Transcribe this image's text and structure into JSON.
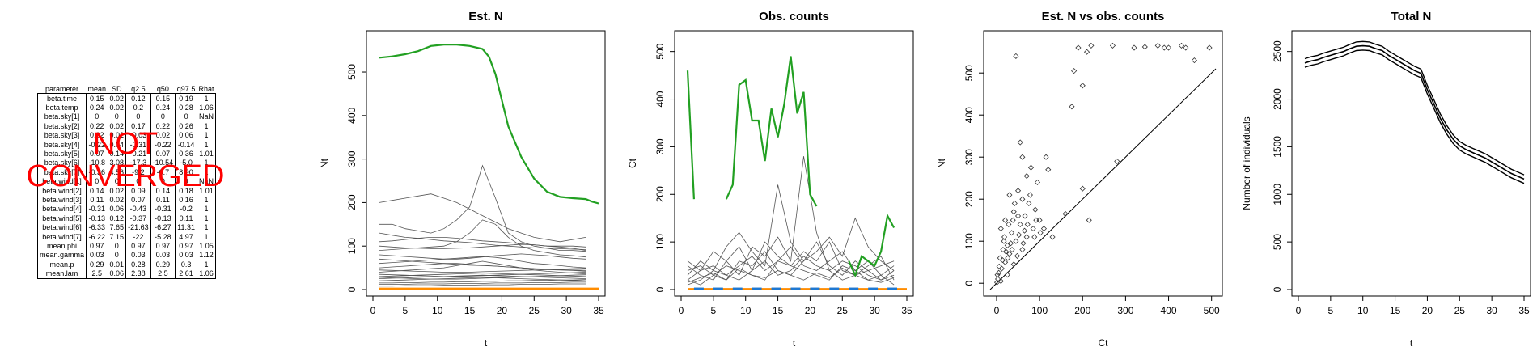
{
  "table": {
    "columns": [
      "parameter",
      "mean",
      "SD",
      "q2.5",
      "q50",
      "q97.5",
      "Rhat"
    ],
    "rows": [
      [
        "beta.time",
        "0.15",
        "0.02",
        "0.12",
        "0.15",
        "0.19",
        "1"
      ],
      [
        "beta.temp",
        "0.24",
        "0.02",
        "0.2",
        "0.24",
        "0.28",
        "1.06"
      ],
      [
        "beta.sky[1]",
        "0",
        "0",
        "0",
        "0",
        "0",
        "NaN"
      ],
      [
        "beta.sky[2]",
        "0.22",
        "0.02",
        "0.17",
        "0.22",
        "0.26",
        "1"
      ],
      [
        "beta.sky[3]",
        "0.02",
        "0.02",
        "-0.03",
        "0.02",
        "0.06",
        "1"
      ],
      [
        "beta.sky[4]",
        "-0.22",
        "0.04",
        "-0.31",
        "-0.22",
        "-0.14",
        "1"
      ],
      [
        "beta.sky[5]",
        "0.07",
        "0.14",
        "-0.21",
        "0.07",
        "0.36",
        "1.01"
      ],
      [
        "beta.sky[6]",
        "-10.8",
        "3.08",
        "-17.3",
        "-10.54",
        "-5.0",
        "1"
      ],
      [
        "beta.sky[7]",
        "-0.36",
        "4.56",
        "-9.2",
        "-0.7",
        "8.90",
        "1"
      ],
      [
        "beta.wind[1]",
        "0",
        "0",
        "0",
        "0",
        "0",
        "NaN"
      ],
      [
        "beta.wind[2]",
        "0.14",
        "0.02",
        "0.09",
        "0.14",
        "0.18",
        "1.01"
      ],
      [
        "beta.wind[3]",
        "0.11",
        "0.02",
        "0.07",
        "0.11",
        "0.16",
        "1"
      ],
      [
        "beta.wind[4]",
        "-0.31",
        "0.06",
        "-0.43",
        "-0.31",
        "-0.2",
        "1"
      ],
      [
        "beta.wind[5]",
        "-0.13",
        "0.12",
        "-0.37",
        "-0.13",
        "0.11",
        "1"
      ],
      [
        "beta.wind[6]",
        "-6.33",
        "7.65",
        "-21.63",
        "-6.27",
        "11.31",
        "1"
      ],
      [
        "beta.wind[7]",
        "-6.22",
        "7.15",
        "-22",
        "-5.28",
        "4.97",
        "1"
      ],
      [
        "mean.phi",
        "0.97",
        "0",
        "0.97",
        "0.97",
        "0.97",
        "1.05"
      ],
      [
        "mean.gamma",
        "0.03",
        "0",
        "0.03",
        "0.03",
        "0.03",
        "1.12"
      ],
      [
        "mean.p",
        "0.29",
        "0.01",
        "0.28",
        "0.29",
        "0.3",
        "1"
      ],
      [
        "mean.lam",
        "2.5",
        "0.06",
        "2.38",
        "2.5",
        "2.61",
        "1.06"
      ]
    ]
  },
  "warning_text": "NOT\nCONVERGED",
  "colors": {
    "green": "#22a022",
    "orange": "#ff8c00",
    "blue": "#1f78d1",
    "gray": "#555555",
    "warning": "#ff0000"
  },
  "chart_data": [
    {
      "type": "line",
      "title": "Est. N",
      "xlabel": "t",
      "ylabel": "Nt",
      "xlim": [
        0,
        35
      ],
      "ylim": [
        0,
        580
      ],
      "xticks": [
        0,
        5,
        10,
        15,
        20,
        25,
        30,
        35
      ],
      "yticks": [
        0,
        100,
        200,
        300,
        400,
        500
      ],
      "highlight_green": {
        "x": [
          1,
          3,
          5,
          7,
          9,
          11,
          13,
          15,
          17,
          18,
          19,
          20,
          21,
          23,
          25,
          27,
          29,
          31,
          33,
          34,
          35
        ],
        "y": [
          533,
          536,
          541,
          548,
          560,
          563,
          563,
          560,
          553,
          535,
          495,
          435,
          375,
          305,
          255,
          225,
          213,
          210,
          208,
          202,
          198
        ]
      },
      "highlight_orange_level": 2,
      "gray_series": [
        [
          200,
          205,
          210,
          215,
          220,
          210,
          200,
          185,
          170,
          155,
          140,
          130,
          120,
          115,
          110,
          115,
          120
        ],
        [
          150,
          150,
          140,
          135,
          130,
          140,
          160,
          190,
          285,
          210,
          130,
          110,
          100,
          95,
          90,
          90,
          88
        ],
        [
          130,
          125,
          120,
          118,
          115,
          112,
          110,
          108,
          105,
          102,
          100,
          98,
          96,
          95,
          94,
          93,
          92
        ],
        [
          110,
          112,
          115,
          118,
          120,
          120,
          118,
          115,
          112,
          110,
          108,
          105,
          103,
          100,
          100,
          100,
          98
        ],
        [
          100,
          98,
          96,
          95,
          94,
          94,
          95,
          96,
          98,
          100,
          102,
          104,
          103,
          100,
          98,
          95,
          90
        ],
        [
          90,
          92,
          94,
          96,
          98,
          100,
          110,
          130,
          160,
          150,
          120,
          100,
          90,
          85,
          80,
          78,
          75
        ],
        [
          80,
          78,
          76,
          74,
          72,
          70,
          70,
          72,
          75,
          78,
          80,
          82,
          80,
          78,
          75,
          72,
          70
        ],
        [
          70,
          68,
          66,
          64,
          62,
          60,
          58,
          56,
          55,
          54,
          52,
          50,
          48,
          47,
          46,
          45,
          44
        ],
        [
          60,
          62,
          64,
          66,
          68,
          70,
          72,
          74,
          76,
          74,
          70,
          65,
          60,
          58,
          55,
          52,
          50
        ],
        [
          50,
          52,
          54,
          56,
          58,
          60,
          60,
          58,
          56,
          54,
          52,
          50,
          48,
          46,
          45,
          44,
          42
        ],
        [
          45,
          44,
          43,
          42,
          41,
          40,
          40,
          40,
          41,
          42,
          43,
          44,
          45,
          46,
          47,
          48,
          49
        ],
        [
          40,
          42,
          44,
          46,
          48,
          50,
          55,
          60,
          65,
          60,
          55,
          50,
          45,
          42,
          40,
          38,
          36
        ],
        [
          35,
          34,
          33,
          32,
          31,
          30,
          30,
          31,
          32,
          33,
          34,
          35,
          36,
          37,
          38,
          39,
          40
        ],
        [
          30,
          31,
          32,
          33,
          34,
          35,
          36,
          37,
          38,
          37,
          36,
          35,
          34,
          33,
          32,
          31,
          30
        ],
        [
          28,
          27,
          26,
          25,
          24,
          24,
          24,
          25,
          26,
          27,
          28,
          29,
          30,
          31,
          32,
          33,
          34
        ],
        [
          25,
          26,
          27,
          28,
          29,
          30,
          31,
          32,
          33,
          32,
          31,
          30,
          29,
          28,
          27,
          26,
          25
        ],
        [
          20,
          21,
          22,
          23,
          24,
          25,
          26,
          27,
          28,
          27,
          26,
          25,
          24,
          23,
          22,
          21,
          20
        ],
        [
          15,
          15,
          16,
          16,
          17,
          17,
          18,
          18,
          19,
          19,
          20,
          20,
          21,
          21,
          22,
          22,
          23
        ],
        [
          12,
          12,
          12,
          13,
          13,
          13,
          14,
          14,
          14,
          15,
          15,
          15,
          16,
          16,
          16,
          17,
          17
        ],
        [
          8,
          8,
          9,
          9,
          9,
          10,
          10,
          10,
          11,
          11,
          11,
          12,
          12,
          12,
          13,
          13,
          13
        ]
      ]
    },
    {
      "type": "line",
      "title": "Obs. counts",
      "xlabel": "t",
      "ylabel": "Ct",
      "xlim": [
        0,
        35
      ],
      "ylim": [
        0,
        530
      ],
      "xticks": [
        0,
        5,
        10,
        15,
        20,
        25,
        30,
        35
      ],
      "yticks": [
        0,
        100,
        200,
        300,
        400,
        500
      ],
      "highlight_green_segments": [
        {
          "x": [
            1,
            2
          ],
          "y": [
            460,
            190
          ]
        },
        {
          "x": [
            7,
            8,
            9,
            10,
            11,
            12,
            13,
            14,
            15,
            16,
            17,
            18,
            19,
            20,
            21
          ],
          "y": [
            190,
            220,
            430,
            440,
            355,
            355,
            270,
            380,
            320,
            390,
            490,
            370,
            415,
            200,
            175
          ]
        },
        {
          "x": [
            26,
            27,
            28,
            29,
            30,
            31,
            32,
            33
          ],
          "y": [
            60,
            30,
            70,
            60,
            50,
            80,
            155,
            130
          ]
        }
      ],
      "highlight_orange_level": 1,
      "highlight_blue_level": 2,
      "gray_series": [
        [
          30,
          60,
          40,
          90,
          120,
          80,
          50,
          220,
          100,
          60,
          80,
          110,
          70,
          150,
          90,
          60,
          40
        ],
        [
          20,
          40,
          80,
          60,
          30,
          90,
          70,
          110,
          60,
          280,
          120,
          40,
          60,
          50,
          30,
          20,
          40
        ],
        [
          50,
          30,
          20,
          60,
          90,
          40,
          100,
          70,
          50,
          80,
          60,
          100,
          40,
          30,
          50,
          70,
          20
        ],
        [
          10,
          20,
          40,
          30,
          50,
          70,
          40,
          60,
          90,
          50,
          40,
          60,
          80,
          40,
          20,
          30,
          50
        ],
        [
          40,
          50,
          30,
          20,
          60,
          50,
          80,
          40,
          30,
          60,
          100,
          50,
          30,
          60,
          40,
          20,
          30
        ],
        [
          20,
          10,
          30,
          50,
          40,
          30,
          20,
          60,
          50,
          40,
          30,
          20,
          50,
          40,
          60,
          30,
          10
        ],
        [
          60,
          40,
          50,
          30,
          20,
          40,
          60,
          30,
          40,
          70,
          50,
          40,
          20,
          30,
          40,
          50,
          60
        ],
        [
          15,
          25,
          35,
          20,
          45,
          30,
          25,
          40,
          30,
          20,
          35,
          25,
          45,
          30,
          20,
          15,
          25
        ]
      ]
    },
    {
      "type": "scatter",
      "title": "Est. N vs obs. counts",
      "xlabel": "Ct",
      "ylabel": "Nt",
      "xlim": [
        -15,
        510
      ],
      "ylim": [
        -15,
        585
      ],
      "xticks": [
        0,
        100,
        200,
        300,
        400,
        500
      ],
      "yticks": [
        0,
        100,
        200,
        300,
        400,
        500
      ],
      "reference_line": "1:1",
      "points": [
        [
          45,
          540
        ],
        [
          190,
          560
        ],
        [
          210,
          550
        ],
        [
          220,
          565
        ],
        [
          270,
          565
        ],
        [
          320,
          560
        ],
        [
          345,
          562
        ],
        [
          375,
          565
        ],
        [
          390,
          560
        ],
        [
          400,
          560
        ],
        [
          430,
          565
        ],
        [
          440,
          560
        ],
        [
          460,
          530
        ],
        [
          495,
          560
        ],
        [
          180,
          505
        ],
        [
          200,
          470
        ],
        [
          175,
          420
        ],
        [
          55,
          335
        ],
        [
          60,
          300
        ],
        [
          115,
          300
        ],
        [
          80,
          275
        ],
        [
          120,
          270
        ],
        [
          70,
          255
        ],
        [
          95,
          240
        ],
        [
          200,
          225
        ],
        [
          160,
          165
        ],
        [
          280,
          290
        ],
        [
          215,
          150
        ],
        [
          50,
          220
        ],
        [
          30,
          210
        ],
        [
          60,
          200
        ],
        [
          75,
          190
        ],
        [
          90,
          175
        ],
        [
          40,
          170
        ],
        [
          20,
          150
        ],
        [
          55,
          140
        ],
        [
          10,
          130
        ],
        [
          35,
          120
        ],
        [
          70,
          110
        ],
        [
          45,
          100
        ],
        [
          25,
          90
        ],
        [
          15,
          80
        ],
        [
          60,
          80
        ],
        [
          30,
          70
        ],
        [
          8,
          60
        ],
        [
          20,
          50
        ],
        [
          40,
          45
        ],
        [
          12,
          35
        ],
        [
          5,
          25
        ],
        [
          25,
          20
        ],
        [
          3,
          10
        ],
        [
          10,
          5
        ],
        [
          1,
          2
        ],
        [
          100,
          150
        ],
        [
          85,
          130
        ],
        [
          110,
          130
        ],
        [
          130,
          110
        ],
        [
          65,
          125
        ],
        [
          50,
          160
        ],
        [
          38,
          150
        ],
        [
          18,
          110
        ],
        [
          28,
          140
        ],
        [
          42,
          190
        ],
        [
          22,
          75
        ],
        [
          33,
          95
        ],
        [
          48,
          65
        ],
        [
          62,
          95
        ],
        [
          72,
          140
        ],
        [
          88,
          110
        ],
        [
          102,
          120
        ],
        [
          6,
          40
        ],
        [
          14,
          55
        ],
        [
          2,
          20
        ],
        [
          17,
          100
        ],
        [
          26,
          60
        ],
        [
          36,
          80
        ],
        [
          52,
          115
        ],
        [
          66,
          160
        ],
        [
          78,
          210
        ],
        [
          92,
          150
        ]
      ]
    },
    {
      "type": "line",
      "title": "Total N",
      "xlabel": "t",
      "ylabel": "Number of individuals",
      "xlim": [
        0,
        35
      ],
      "ylim": [
        0,
        2650
      ],
      "xticks": [
        0,
        5,
        10,
        15,
        20,
        25,
        30,
        35
      ],
      "yticks": [
        0,
        500,
        1000,
        1500,
        2000,
        2500
      ],
      "series": [
        {
          "x": [
            1,
            2,
            3,
            4,
            5,
            6,
            7,
            8,
            9,
            10,
            11,
            12,
            13,
            14,
            15,
            16,
            17,
            18,
            19,
            20,
            21,
            22,
            23,
            24,
            25,
            26,
            27,
            28,
            29,
            30,
            31,
            32,
            33,
            34,
            35
          ],
          "y": [
            2380,
            2400,
            2415,
            2440,
            2460,
            2480,
            2500,
            2530,
            2555,
            2560,
            2555,
            2530,
            2510,
            2460,
            2420,
            2380,
            2340,
            2300,
            2270,
            2100,
            1950,
            1800,
            1680,
            1580,
            1510,
            1470,
            1440,
            1410,
            1380,
            1340,
            1300,
            1260,
            1220,
            1190,
            1160
          ]
        }
      ],
      "band_width": 45
    }
  ]
}
